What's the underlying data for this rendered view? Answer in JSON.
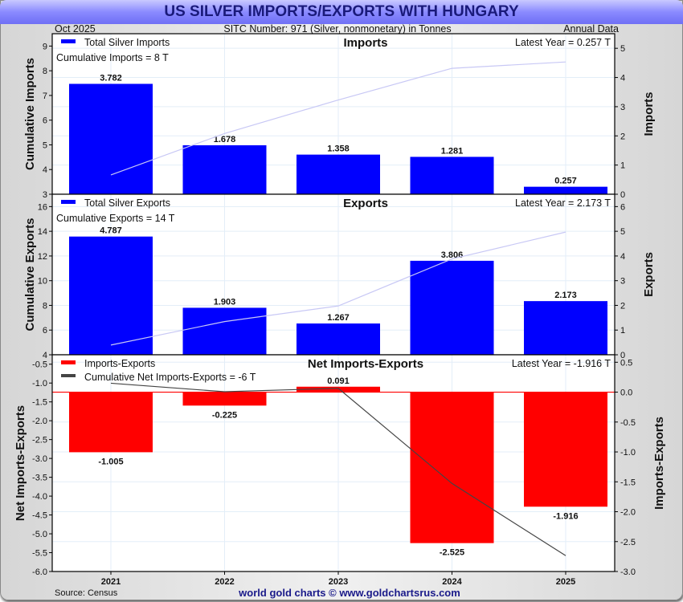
{
  "header": {
    "title": "US SILVER IMPORTS/EXPORTS WITH HUNGARY",
    "date": "Oct  2025",
    "subtitle": "SITC Number: 971 (Silver, nonmonetary) in Tonnes",
    "frequency": "Annual Data"
  },
  "footer": {
    "source": "Source: Census",
    "brand": "world gold charts © www.goldchartsrus.com"
  },
  "colors": {
    "bar_blue": "#0000ff",
    "bar_red": "#ff0000",
    "cum_line_light": "#c8c8f5",
    "cum_line_dark": "#444444",
    "title_text": "#1a1a7a"
  },
  "chart_data": [
    {
      "type": "bar",
      "panel": "imports",
      "title": "Imports",
      "legend": "Total Silver Imports",
      "cumulative_label": "Cumulative Imports = 8 T",
      "latest_label": "Latest Year = 0.257 T",
      "ylabel_left": "Cumulative Imports",
      "ylabel_right": "Imports",
      "categories": [
        "2021",
        "2022",
        "2023",
        "2024",
        "2025"
      ],
      "values": [
        3.782,
        1.678,
        1.358,
        1.281,
        0.257
      ],
      "value_labels": [
        "3.782",
        "1.678",
        "1.358",
        "1.281",
        "0.257"
      ],
      "cumulative": [
        3.782,
        5.46,
        6.818,
        8.099,
        8.356
      ],
      "ylim_left": [
        3,
        9.5
      ],
      "yticks_left": [
        3,
        4,
        5,
        6,
        7,
        8,
        9
      ],
      "ylim_right": [
        0,
        5.5
      ],
      "yticks_right": [
        0,
        1,
        2,
        3,
        4,
        5
      ]
    },
    {
      "type": "bar",
      "panel": "exports",
      "title": "Exports",
      "legend": "Total Silver Exports",
      "cumulative_label": "Cumulative Exports = 14 T",
      "latest_label": "Latest Year = 2.173 T",
      "ylabel_left": "Cumulative Exports",
      "ylabel_right": "Exports",
      "categories": [
        "2021",
        "2022",
        "2023",
        "2024",
        "2025"
      ],
      "values": [
        4.787,
        1.903,
        1.267,
        3.806,
        2.173
      ],
      "value_labels": [
        "4.787",
        "1.903",
        "1.267",
        "3.806",
        "2.173"
      ],
      "cumulative": [
        4.787,
        6.69,
        7.957,
        11.763,
        13.936
      ],
      "ylim_left": [
        4,
        17
      ],
      "yticks_left": [
        4,
        6,
        8,
        10,
        12,
        14,
        16
      ],
      "ylim_right": [
        0,
        6.5
      ],
      "yticks_right": [
        0,
        1,
        2,
        3,
        4,
        5,
        6
      ]
    },
    {
      "type": "bar",
      "panel": "net",
      "title": "Net Imports-Exports",
      "legend": "Imports-Exports",
      "legend2": "Cumulative Net Imports-Exports = -6 T",
      "latest_label": "Latest Year = -1.916 T",
      "ylabel_left": "Net Imports-Exports",
      "ylabel_right": "Imports-Exports",
      "categories": [
        "2021",
        "2022",
        "2023",
        "2024",
        "2025"
      ],
      "values": [
        -1.005,
        -0.225,
        0.091,
        -2.525,
        -1.916
      ],
      "value_labels": [
        "-1.005",
        "-0.225",
        "0.091",
        "-2.525",
        "-1.916"
      ],
      "cumulative": [
        -1.005,
        -1.23,
        -1.139,
        -3.664,
        -5.58
      ],
      "ylim_left": [
        -6.0,
        -0.25
      ],
      "yticks_left": [
        -6.0,
        -5.5,
        -5.0,
        -4.5,
        -4.0,
        -3.5,
        -3.0,
        -2.5,
        -2.0,
        -1.5,
        -1.0,
        -0.5
      ],
      "ylim_right": [
        -3.0,
        0.625
      ],
      "yticks_right": [
        -3.0,
        -2.5,
        -2.0,
        -1.5,
        -1.0,
        -0.5,
        0.0,
        0.5
      ]
    }
  ]
}
